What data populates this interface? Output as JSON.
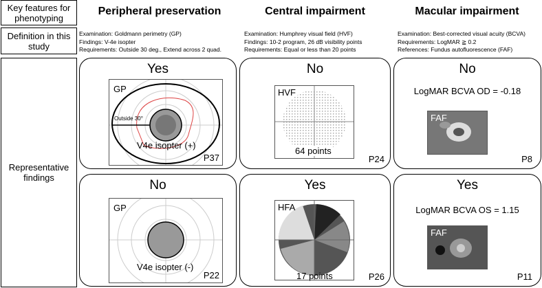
{
  "row_labels": {
    "key_features": "Key features for phenotyping",
    "definition": "Definition in this study",
    "representative": "Representative findings"
  },
  "columns": [
    {
      "header": "Peripheral preservation",
      "def": [
        "Examination: Goldmann perimetry (GP)",
        "Findings: V-4e isopter",
        "Requirements: Outside 30 deg., Extend across 2 quad."
      ],
      "panels": [
        {
          "answer": "Yes",
          "tag": "GP",
          "annotation": "Outside 30°",
          "caption": "V4e isopter (+)",
          "patient": "P37"
        },
        {
          "answer": "No",
          "tag": "GP",
          "caption": "V4e isopter (-)",
          "patient": "P22"
        }
      ]
    },
    {
      "header": "Central impairment",
      "def": [
        "Examination: Humphrey visual field (HVF)",
        "Findings: 10-2 program, 26 dB visibility points",
        "Requirements: Equal or less than 20 points"
      ],
      "panels": [
        {
          "answer": "No",
          "tag": "HVF",
          "caption": "64 points",
          "patient": "P24"
        },
        {
          "answer": "Yes",
          "tag": "HFA",
          "caption": "17 points",
          "patient": "P26"
        }
      ]
    },
    {
      "header": "Macular impairment",
      "def": [
        "Examination: Best-corrected visual acuity (BCVA)",
        "Requirements: LogMAR ≧ 0.2",
        "References: Fundus autofluorescence (FAF)"
      ],
      "panels": [
        {
          "answer": "No",
          "bcva": "LogMAR BCVA OD = -0.18",
          "tag": "FAF",
          "patient": "P8"
        },
        {
          "answer": "Yes",
          "bcva": "LogMAR BCVA OS = 1.15",
          "tag": "FAF",
          "patient": "P11"
        }
      ]
    }
  ]
}
